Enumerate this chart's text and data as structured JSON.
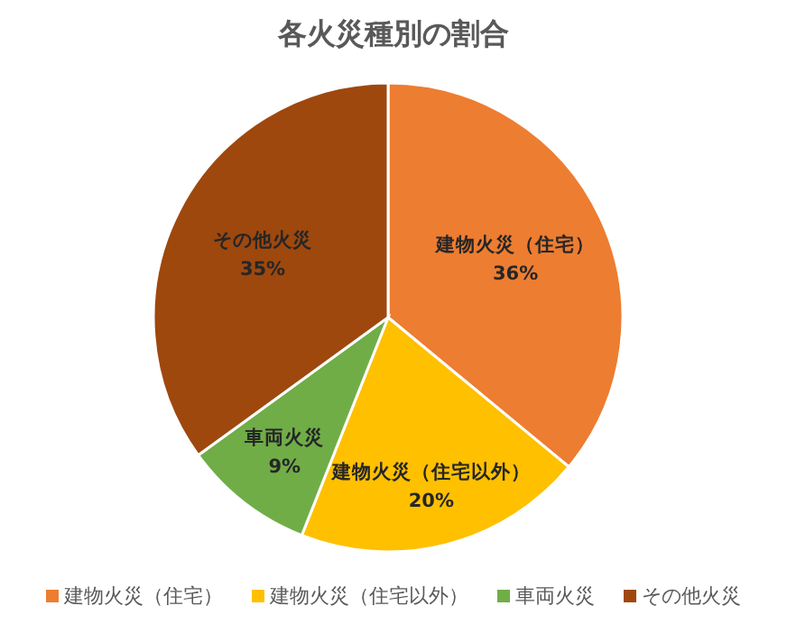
{
  "chart_data": {
    "type": "pie",
    "title": "各火災種別の割合",
    "categories": [
      "建物火災（住宅）",
      "建物火災（住宅以外）",
      "車両火災",
      "その他火災"
    ],
    "values": [
      36,
      20,
      9,
      35
    ],
    "value_labels": [
      "36%",
      "20%",
      "9%",
      "35%"
    ],
    "colors": [
      "#ed7d31",
      "#ffc000",
      "#70ad47",
      "#9e480e"
    ],
    "legend": "bottom"
  }
}
